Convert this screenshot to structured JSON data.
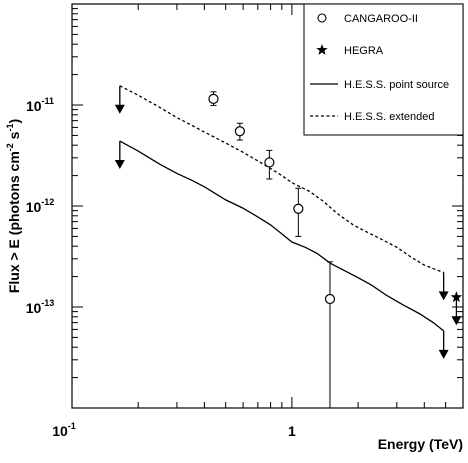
{
  "chart_data": {
    "type": "scatter",
    "title": "",
    "xlabel": "Energy (TeV)",
    "ylabel_parts": [
      "Flux > E (photons cm",
      "-2",
      " s",
      "-1",
      ")"
    ],
    "xscale": "log",
    "yscale": "log",
    "xlim": [
      0.1,
      6.0
    ],
    "ylim": [
      1e-14,
      1e-10
    ],
    "grid": false,
    "legend_position": "top-right",
    "x_major_ticks": [
      {
        "value": 0.1,
        "label_base": "10",
        "label_exp": "-1"
      },
      {
        "value": 1,
        "label_base": "1",
        "label_exp": ""
      }
    ],
    "y_major_ticks": [
      {
        "value": 1e-13,
        "label_base": "10",
        "label_exp": "-13"
      },
      {
        "value": 1e-12,
        "label_base": "10",
        "label_exp": "-12"
      },
      {
        "value": 1e-11,
        "label_base": "10",
        "label_exp": "-11"
      }
    ],
    "series": [
      {
        "name": "CANGAROO-II",
        "kind": "points-errorbars",
        "marker": "open-circle",
        "points": [
          {
            "x": 0.44,
            "y": 1.15e-11,
            "ylo": 9.9e-12,
            "yhi": 1.35e-11
          },
          {
            "x": 0.58,
            "y": 5.5e-12,
            "ylo": 4.5e-12,
            "yhi": 6.6e-12
          },
          {
            "x": 0.79,
            "y": 2.7e-12,
            "ylo": 1.85e-12,
            "yhi": 3.55e-12
          },
          {
            "x": 1.07,
            "y": 9.4e-13,
            "ylo": 5e-13,
            "yhi": 1.5e-12
          },
          {
            "x": 1.49,
            "y": 1.2e-13,
            "ylo": 1e-14,
            "yhi": 2.8e-13
          }
        ]
      },
      {
        "name": "HEGRA",
        "kind": "point",
        "marker": "star",
        "points": [
          {
            "x": 5.6,
            "y": 1.25e-13
          }
        ]
      },
      {
        "name": "H.E.S.S. point source",
        "kind": "line",
        "style": "solid",
        "points": [
          {
            "x": 0.165,
            "y": 4.4e-12
          },
          {
            "x": 0.2,
            "y": 3.5e-12
          },
          {
            "x": 0.25,
            "y": 2.6e-12
          },
          {
            "x": 0.3,
            "y": 2.1e-12
          },
          {
            "x": 0.35,
            "y": 1.8e-12
          },
          {
            "x": 0.4,
            "y": 1.55e-12
          },
          {
            "x": 0.5,
            "y": 1.15e-12
          },
          {
            "x": 0.6,
            "y": 9.5e-13
          },
          {
            "x": 0.7,
            "y": 7.8e-13
          },
          {
            "x": 0.8,
            "y": 6.5e-13
          },
          {
            "x": 0.9,
            "y": 5.3e-13
          },
          {
            "x": 1.0,
            "y": 4.4e-13
          },
          {
            "x": 1.15,
            "y": 3.9e-13
          },
          {
            "x": 1.3,
            "y": 3.4e-13
          },
          {
            "x": 1.5,
            "y": 2.7e-13
          },
          {
            "x": 1.8,
            "y": 2.2e-13
          },
          {
            "x": 2.0,
            "y": 1.95e-13
          },
          {
            "x": 2.3,
            "y": 1.65e-13
          },
          {
            "x": 2.7,
            "y": 1.3e-13
          },
          {
            "x": 3.2,
            "y": 1.05e-13
          },
          {
            "x": 3.8,
            "y": 8.6e-14
          },
          {
            "x": 4.4,
            "y": 7e-14
          },
          {
            "x": 4.9,
            "y": 5.8e-14
          }
        ],
        "upper_limits": [
          {
            "x": 0.165,
            "y": 4.4e-12
          },
          {
            "x": 4.9,
            "y": 5.8e-14
          }
        ]
      },
      {
        "name": "H.E.S.S. extended",
        "kind": "line",
        "style": "dashed",
        "points": [
          {
            "x": 0.165,
            "y": 1.55e-11
          },
          {
            "x": 0.2,
            "y": 1.25e-11
          },
          {
            "x": 0.25,
            "y": 9.5e-12
          },
          {
            "x": 0.3,
            "y": 7.5e-12
          },
          {
            "x": 0.35,
            "y": 6.3e-12
          },
          {
            "x": 0.4,
            "y": 5.4e-12
          },
          {
            "x": 0.5,
            "y": 4.2e-12
          },
          {
            "x": 0.6,
            "y": 3.4e-12
          },
          {
            "x": 0.7,
            "y": 2.8e-12
          },
          {
            "x": 0.8,
            "y": 2.35e-12
          },
          {
            "x": 0.9,
            "y": 2e-12
          },
          {
            "x": 1.0,
            "y": 1.7e-12
          },
          {
            "x": 1.2,
            "y": 1.4e-12
          },
          {
            "x": 1.4,
            "y": 1.1e-12
          },
          {
            "x": 1.6,
            "y": 8.5e-13
          },
          {
            "x": 1.9,
            "y": 6.5e-13
          },
          {
            "x": 2.2,
            "y": 5.5e-13
          },
          {
            "x": 2.5,
            "y": 4.8e-13
          },
          {
            "x": 3.0,
            "y": 3.9e-13
          },
          {
            "x": 3.5,
            "y": 3.1e-13
          },
          {
            "x": 4.0,
            "y": 2.6e-13
          },
          {
            "x": 4.5,
            "y": 2.35e-13
          },
          {
            "x": 4.9,
            "y": 2.2e-13
          }
        ],
        "upper_limits": [
          {
            "x": 0.165,
            "y": 1.55e-11
          },
          {
            "x": 4.9,
            "y": 2.2e-13
          },
          {
            "x": 5.6,
            "y": 1.25e-13
          }
        ]
      }
    ]
  }
}
